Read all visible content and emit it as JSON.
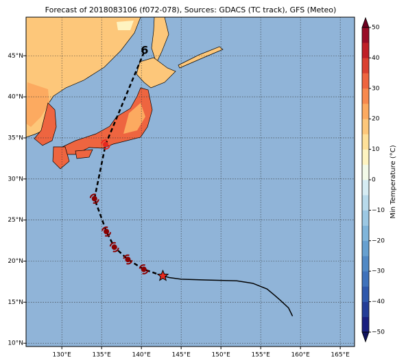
{
  "title": "Forecast of 2018083106 (f072-078), Sources: GDACS (TC track), GFS (Meteo)",
  "map": {
    "xlim": [
      125.5,
      166.8
    ],
    "ylim": [
      9.6,
      49.7
    ],
    "xticks": [
      {
        "value": 130,
        "label": "130°E"
      },
      {
        "value": 135,
        "label": "135°E"
      },
      {
        "value": 140,
        "label": "140°E"
      },
      {
        "value": 145,
        "label": "145°E"
      },
      {
        "value": 150,
        "label": "150°E"
      },
      {
        "value": 155,
        "label": "155°E"
      },
      {
        "value": 160,
        "label": "160°E"
      },
      {
        "value": 165,
        "label": "165°E"
      }
    ],
    "yticks": [
      {
        "value": 10,
        "label": "10°N"
      },
      {
        "value": 15,
        "label": "15°N"
      },
      {
        "value": 20,
        "label": "20°N"
      },
      {
        "value": 25,
        "label": "25°N"
      },
      {
        "value": 30,
        "label": "30°N"
      },
      {
        "value": 35,
        "label": "35°N"
      },
      {
        "value": 40,
        "label": "40°N"
      },
      {
        "value": 45,
        "label": "45°N"
      }
    ],
    "grid": true,
    "observed_track": {
      "lon": [
        159.0,
        158.5,
        157.5,
        156.8,
        155.8,
        154.0,
        152.0,
        148.0,
        145.0,
        143.5,
        142.7
      ],
      "lat": [
        13.3,
        14.3,
        15.2,
        15.8,
        16.6,
        17.3,
        17.6,
        17.7,
        17.8,
        18.0,
        18.2
      ],
      "color": "#000000"
    },
    "forecast_track": {
      "lon": [
        142.7,
        140.3,
        138.3,
        136.6,
        135.6,
        134.1,
        135.5,
        140.4
      ],
      "lat": [
        18.2,
        19.0,
        20.2,
        21.7,
        23.6,
        27.6,
        34.2,
        45.6
      ],
      "color": "#000000"
    },
    "storm_color": "#8b0000",
    "current_color": "#e8281e",
    "end_symbol": "6"
  },
  "colorbar": {
    "label": "Min Temperature (°C)",
    "lim": [
      -50,
      50
    ],
    "ticks": [
      {
        "value": -50,
        "label": "−50"
      },
      {
        "value": -40,
        "label": "−40"
      },
      {
        "value": -30,
        "label": "−30"
      },
      {
        "value": -20,
        "label": "−20"
      },
      {
        "value": -10,
        "label": "−10"
      },
      0,
      10,
      20,
      30,
      40,
      50
    ],
    "colors": [
      "#1a1f7f",
      "#243d97",
      "#2f58ac",
      "#3f72bb",
      "#5189c5",
      "#67a0d0",
      "#80b5da",
      "#9cc8e3",
      "#b8daeb",
      "#d6ecf3",
      "#f2f9e8",
      "#fef3c0",
      "#fee099",
      "#fdc77a",
      "#fcaa60",
      "#f7894e",
      "#ee6540",
      "#da4030",
      "#bf1f27",
      "#990c26"
    ],
    "extend_colors": [
      "#10135e",
      "#6e0020"
    ]
  }
}
